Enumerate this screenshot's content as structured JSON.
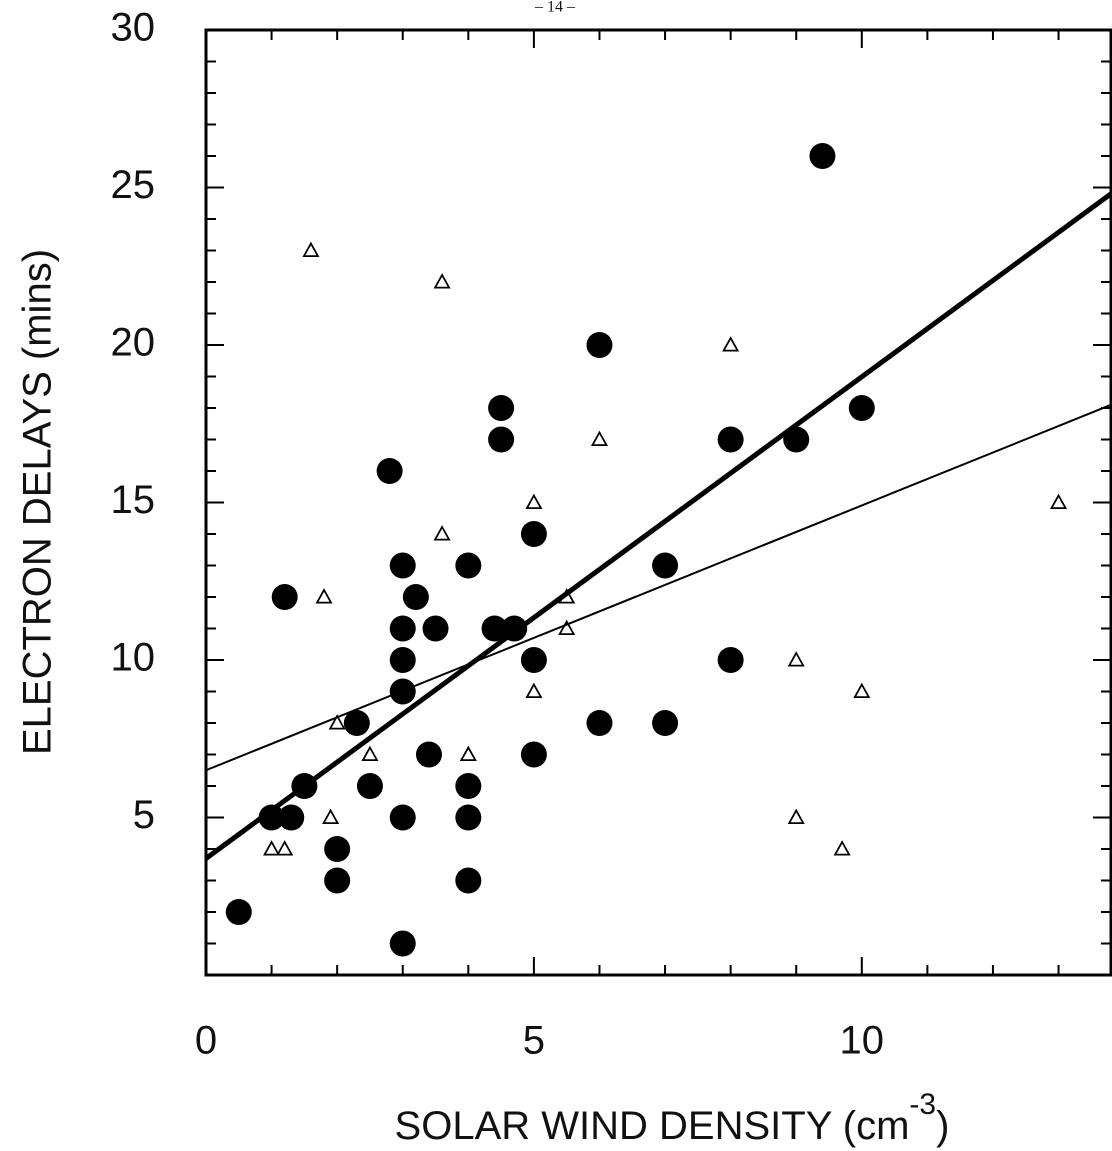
{
  "chart_data": {
    "type": "scatter",
    "page_number": "– 14 –",
    "x_label": {
      "text": "SOLAR WIND DENSITY (cm",
      "superscript": "-3",
      "suffix": ")"
    },
    "y_label": "ELECTRON DELAYS (mins)",
    "xlim": [
      0,
      13.8
    ],
    "ylim": [
      0,
      30
    ],
    "xticks": [
      0,
      5,
      10
    ],
    "yticks": [
      5,
      10,
      15,
      20,
      25,
      30
    ],
    "xminorticks": [
      1,
      2,
      3,
      4,
      6,
      7,
      8,
      9,
      11,
      12,
      13
    ],
    "yminorticks": [
      1,
      2,
      3,
      4,
      6,
      7,
      8,
      9,
      11,
      12,
      13,
      14,
      16,
      17,
      18,
      19,
      21,
      22,
      23,
      24,
      26,
      27,
      28,
      29
    ],
    "grid": false,
    "series": [
      {
        "marker": "circle",
        "color": "#000000",
        "x": [
          0.5,
          1,
          1.3,
          1.2,
          1.5,
          2,
          2,
          2.3,
          2.5,
          2.8,
          3,
          3,
          3,
          3,
          3,
          3,
          3.2,
          3.4,
          3.5,
          4,
          4,
          4,
          4,
          4.4,
          4.5,
          4.5,
          4.7,
          5,
          5,
          5,
          6,
          6,
          7,
          7,
          8,
          8,
          9,
          9.4,
          10
        ],
        "values": [
          2,
          5,
          5,
          12,
          6,
          4,
          3,
          8,
          6,
          16,
          13,
          11,
          10,
          9,
          5,
          1,
          12,
          7,
          11,
          13,
          6,
          5,
          3,
          11,
          18,
          17,
          11,
          14,
          10,
          7,
          20,
          8,
          13,
          8,
          17,
          10,
          17,
          26,
          18
        ]
      },
      {
        "marker": "triangle",
        "color": "#000000",
        "x": [
          1.6,
          3.6,
          8,
          6,
          5,
          13,
          3.6,
          1.8,
          5.5,
          5.5,
          9,
          10,
          5,
          2,
          2.5,
          4,
          1.9,
          1,
          1.2,
          9,
          9.7
        ],
        "values": [
          23,
          22,
          20,
          17,
          15,
          15,
          14,
          12,
          12,
          11,
          10,
          9,
          9,
          8,
          7,
          7,
          5,
          4,
          4,
          5,
          4
        ]
      },
      {
        "marker": "line",
        "color": "#000000",
        "width": 5,
        "x": [
          0,
          13.8
        ],
        "values": [
          3.7,
          24.8
        ]
      },
      {
        "marker": "line",
        "color": "#000000",
        "width": 2,
        "x": [
          0,
          13.8
        ],
        "values": [
          6.5,
          18.1
        ]
      }
    ]
  }
}
